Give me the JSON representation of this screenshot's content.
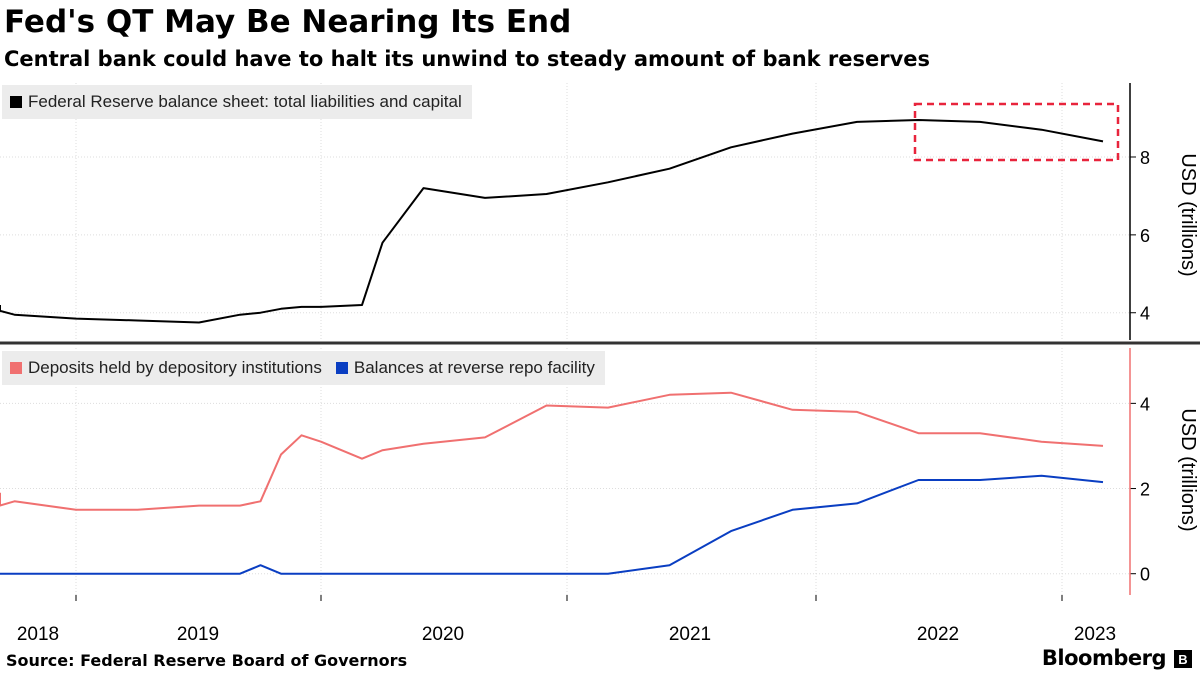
{
  "header": {
    "title": "Fed's QT May Be Nearing Its End",
    "subtitle": "Central bank could have to halt its unwind to steady amount of bank reserves"
  },
  "footer": {
    "source": "Source: Federal Reserve Board of Governors",
    "brand": "Bloomberg",
    "brand_icon": "bloomberg-terminal-icon"
  },
  "chart_data": [
    {
      "type": "line",
      "legend_position": "top-left",
      "ylabel": "USD (trillions)",
      "ylim": [
        3.3,
        9.9
      ],
      "yticks": [
        4,
        6,
        8
      ],
      "xticks": [
        "2018",
        "2019",
        "2020",
        "2021",
        "2022",
        "2023"
      ],
      "grid": true,
      "annotation": "dashed red box highlighting decline from 2022 to 2023",
      "series": [
        {
          "name": "Federal Reserve balance sheet: total liabilities and capital",
          "color": "#000000",
          "x": [
            "2018-01",
            "2018-04",
            "2018-07",
            "2018-10",
            "2019-01",
            "2019-04",
            "2019-07",
            "2019-09",
            "2019-10",
            "2019-11",
            "2019-12",
            "2020-01",
            "2020-03",
            "2020-04",
            "2020-06",
            "2020-09",
            "2020-12",
            "2021-03",
            "2021-06",
            "2021-09",
            "2021-12",
            "2022-03",
            "2022-06",
            "2022-09",
            "2022-12",
            "2023-03"
          ],
          "values": [
            4.2,
            4.1,
            4.05,
            3.95,
            3.85,
            3.8,
            3.75,
            3.95,
            4.0,
            4.1,
            4.15,
            4.15,
            4.2,
            5.8,
            7.2,
            6.95,
            7.05,
            7.35,
            7.7,
            8.25,
            8.6,
            8.9,
            8.95,
            8.9,
            8.7,
            8.4
          ]
        }
      ]
    },
    {
      "type": "line",
      "legend_position": "top-left",
      "ylabel": "USD (trillions)",
      "ylim": [
        -0.5,
        5.3
      ],
      "yticks": [
        0,
        2,
        4
      ],
      "xticks": [
        "2018",
        "2019",
        "2020",
        "2021",
        "2022",
        "2023"
      ],
      "grid": true,
      "series": [
        {
          "name": "Deposits held by depository institutions",
          "color": "#f07070",
          "x": [
            "2018-01",
            "2018-04",
            "2018-07",
            "2018-10",
            "2019-01",
            "2019-04",
            "2019-07",
            "2019-09",
            "2019-10",
            "2019-11",
            "2019-12",
            "2020-01",
            "2020-03",
            "2020-04",
            "2020-06",
            "2020-09",
            "2020-12",
            "2021-03",
            "2021-06",
            "2021-09",
            "2021-12",
            "2022-03",
            "2022-06",
            "2022-09",
            "2022-12",
            "2023-03"
          ],
          "values": [
            1.9,
            1.8,
            1.6,
            1.7,
            1.5,
            1.5,
            1.6,
            1.6,
            1.7,
            2.8,
            3.25,
            3.1,
            2.7,
            2.9,
            3.05,
            3.2,
            3.95,
            3.9,
            4.2,
            4.25,
            3.85,
            3.8,
            3.3,
            3.3,
            3.1,
            3.0
          ]
        },
        {
          "name": "Balances at reverse repo facility",
          "color": "#0a3ec2",
          "x": [
            "2018-01",
            "2018-04",
            "2018-07",
            "2018-10",
            "2019-01",
            "2019-04",
            "2019-07",
            "2019-09",
            "2019-10",
            "2019-11",
            "2019-12",
            "2020-01",
            "2020-03",
            "2020-04",
            "2020-06",
            "2020-09",
            "2020-12",
            "2021-03",
            "2021-06",
            "2021-09",
            "2021-12",
            "2022-03",
            "2022-06",
            "2022-09",
            "2022-12",
            "2023-03"
          ],
          "values": [
            0.0,
            0.0,
            0.0,
            0.0,
            0.0,
            0.0,
            0.0,
            0.0,
            0.2,
            0.0,
            0.0,
            0.0,
            0.0,
            0.0,
            0.0,
            0.0,
            0.0,
            0.0,
            0.2,
            1.0,
            1.5,
            1.65,
            2.2,
            2.2,
            2.3,
            2.15
          ]
        }
      ]
    }
  ]
}
